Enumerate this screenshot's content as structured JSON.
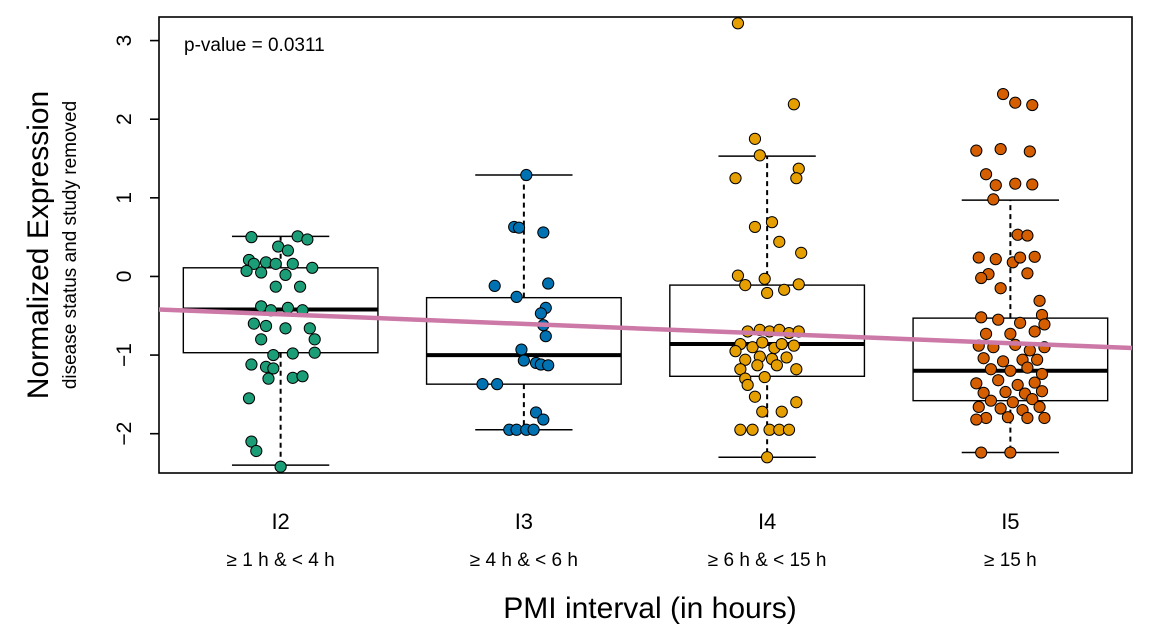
{
  "chart_data": {
    "type": "box",
    "annotation": "p-value = 0.0311",
    "xlabel": "PMI interval (in hours)",
    "ylabel": "Normalized Expression",
    "ylabel_sub": "disease status and study removed",
    "ylim": [
      -2.5,
      3.3
    ],
    "yticks": [
      -2,
      -1,
      0,
      1,
      2,
      3
    ],
    "ytick_labels": [
      "−2",
      "−1",
      "0",
      "1",
      "2",
      "3"
    ],
    "trend_line": {
      "x": [
        0.5,
        4.5
      ],
      "y": [
        -0.42,
        -0.91
      ],
      "color": "#cc79a7"
    },
    "groups": [
      {
        "label": "I2",
        "sublabel": "≥ 1 h & < 4 h",
        "color": "#1b9e77",
        "box": {
          "whisker_low": -2.4,
          "q1": -0.97,
          "median": -0.42,
          "q3": 0.11,
          "whisker_high": 0.51
        },
        "points": [
          {
            "dx": -0.12,
            "y": 0.5
          },
          {
            "dx": 0.07,
            "y": 0.51
          },
          {
            "dx": 0.11,
            "y": 0.47
          },
          {
            "dx": -0.01,
            "y": 0.38
          },
          {
            "dx": 0.03,
            "y": 0.33
          },
          {
            "dx": -0.13,
            "y": 0.21
          },
          {
            "dx": -0.11,
            "y": 0.16
          },
          {
            "dx": -0.06,
            "y": 0.18
          },
          {
            "dx": -0.02,
            "y": 0.16
          },
          {
            "dx": 0.05,
            "y": 0.16
          },
          {
            "dx": 0.13,
            "y": 0.11
          },
          {
            "dx": -0.14,
            "y": 0.07
          },
          {
            "dx": -0.08,
            "y": 0.05
          },
          {
            "dx": 0.02,
            "y": 0.02
          },
          {
            "dx": -0.02,
            "y": -0.13
          },
          {
            "dx": 0.08,
            "y": -0.13
          },
          {
            "dx": -0.08,
            "y": -0.38
          },
          {
            "dx": 0.03,
            "y": -0.4
          },
          {
            "dx": 0.09,
            "y": -0.43
          },
          {
            "dx": -0.04,
            "y": -0.43
          },
          {
            "dx": -0.11,
            "y": -0.6
          },
          {
            "dx": -0.06,
            "y": -0.63
          },
          {
            "dx": 0.02,
            "y": -0.66
          },
          {
            "dx": 0.12,
            "y": -0.66
          },
          {
            "dx": -0.08,
            "y": -0.8
          },
          {
            "dx": 0.14,
            "y": -0.8
          },
          {
            "dx": -0.03,
            "y": -1.0
          },
          {
            "dx": 0.05,
            "y": -0.98
          },
          {
            "dx": 0.14,
            "y": -0.97
          },
          {
            "dx": -0.12,
            "y": -1.12
          },
          {
            "dx": -0.06,
            "y": -1.15
          },
          {
            "dx": -0.03,
            "y": -1.17
          },
          {
            "dx": 0.05,
            "y": -1.29
          },
          {
            "dx": 0.09,
            "y": -1.27
          },
          {
            "dx": -0.05,
            "y": -1.3
          },
          {
            "dx": -0.13,
            "y": -1.55
          },
          {
            "dx": -0.12,
            "y": -2.1
          },
          {
            "dx": -0.1,
            "y": -2.22
          },
          {
            "dx": 0.0,
            "y": -2.42
          }
        ]
      },
      {
        "label": "I3",
        "sublabel": "≥ 4 h & < 6 h",
        "color": "#0072b2",
        "box": {
          "whisker_low": -1.95,
          "q1": -1.37,
          "median": -1.0,
          "q3": -0.27,
          "whisker_high": 1.29
        },
        "points": [
          {
            "dx": 0.01,
            "y": 1.29
          },
          {
            "dx": -0.04,
            "y": 0.63
          },
          {
            "dx": -0.02,
            "y": 0.62
          },
          {
            "dx": 0.08,
            "y": 0.56
          },
          {
            "dx": -0.12,
            "y": -0.12
          },
          {
            "dx": 0.1,
            "y": -0.09
          },
          {
            "dx": -0.03,
            "y": -0.26
          },
          {
            "dx": 0.09,
            "y": -0.4
          },
          {
            "dx": 0.07,
            "y": -0.47
          },
          {
            "dx": 0.08,
            "y": -0.62
          },
          {
            "dx": 0.09,
            "y": -0.76
          },
          {
            "dx": -0.01,
            "y": -0.93
          },
          {
            "dx": 0.0,
            "y": -1.07
          },
          {
            "dx": 0.05,
            "y": -1.1
          },
          {
            "dx": 0.07,
            "y": -1.12
          },
          {
            "dx": 0.1,
            "y": -1.13
          },
          {
            "dx": -0.17,
            "y": -1.37
          },
          {
            "dx": -0.11,
            "y": -1.37
          },
          {
            "dx": 0.05,
            "y": -1.73
          },
          {
            "dx": 0.08,
            "y": -1.82
          },
          {
            "dx": -0.06,
            "y": -1.95
          },
          {
            "dx": -0.03,
            "y": -1.95
          },
          {
            "dx": 0.01,
            "y": -1.95
          },
          {
            "dx": 0.04,
            "y": -1.95
          }
        ]
      },
      {
        "label": "I4",
        "sublabel": "≥ 6 h & < 15 h",
        "color": "#e69f00",
        "box": {
          "whisker_low": -2.3,
          "q1": -1.27,
          "median": -0.86,
          "q3": -0.11,
          "whisker_high": 1.53
        },
        "points": [
          {
            "dx": -0.12,
            "y": 3.22
          },
          {
            "dx": 0.11,
            "y": 2.19
          },
          {
            "dx": -0.05,
            "y": 1.75
          },
          {
            "dx": -0.03,
            "y": 1.54
          },
          {
            "dx": 0.13,
            "y": 1.37
          },
          {
            "dx": -0.13,
            "y": 1.25
          },
          {
            "dx": 0.12,
            "y": 1.25
          },
          {
            "dx": 0.02,
            "y": 0.69
          },
          {
            "dx": -0.05,
            "y": 0.63
          },
          {
            "dx": 0.05,
            "y": 0.44
          },
          {
            "dx": 0.14,
            "y": 0.3
          },
          {
            "dx": -0.12,
            "y": 0.01
          },
          {
            "dx": -0.09,
            "y": -0.11
          },
          {
            "dx": -0.01,
            "y": -0.03
          },
          {
            "dx": 0.13,
            "y": -0.1
          },
          {
            "dx": 0.07,
            "y": -0.17
          },
          {
            "dx": 0.0,
            "y": -0.21
          },
          {
            "dx": -0.08,
            "y": -0.7
          },
          {
            "dx": -0.03,
            "y": -0.68
          },
          {
            "dx": 0.01,
            "y": -0.7
          },
          {
            "dx": 0.05,
            "y": -0.68
          },
          {
            "dx": 0.09,
            "y": -0.72
          },
          {
            "dx": 0.13,
            "y": -0.7
          },
          {
            "dx": -0.11,
            "y": -0.86
          },
          {
            "dx": -0.06,
            "y": -0.9
          },
          {
            "dx": -0.02,
            "y": -0.84
          },
          {
            "dx": 0.03,
            "y": -0.91
          },
          {
            "dx": 0.06,
            "y": -0.86
          },
          {
            "dx": 0.11,
            "y": -0.88
          },
          {
            "dx": -0.13,
            "y": -0.95
          },
          {
            "dx": -0.09,
            "y": -1.06
          },
          {
            "dx": -0.03,
            "y": -1.02
          },
          {
            "dx": 0.02,
            "y": -1.05
          },
          {
            "dx": 0.08,
            "y": -1.03
          },
          {
            "dx": -0.11,
            "y": -1.18
          },
          {
            "dx": -0.04,
            "y": -1.13
          },
          {
            "dx": 0.04,
            "y": -1.13
          },
          {
            "dx": 0.12,
            "y": -1.18
          },
          {
            "dx": -0.09,
            "y": -1.3
          },
          {
            "dx": -0.01,
            "y": -1.28
          },
          {
            "dx": -0.08,
            "y": -1.38
          },
          {
            "dx": -0.05,
            "y": -1.53
          },
          {
            "dx": 0.12,
            "y": -1.6
          },
          {
            "dx": -0.02,
            "y": -1.72
          },
          {
            "dx": 0.06,
            "y": -1.72
          },
          {
            "dx": -0.11,
            "y": -1.95
          },
          {
            "dx": -0.06,
            "y": -1.95
          },
          {
            "dx": 0.01,
            "y": -1.95
          },
          {
            "dx": 0.05,
            "y": -1.95
          },
          {
            "dx": 0.09,
            "y": -1.95
          },
          {
            "dx": 0.0,
            "y": -2.3
          }
        ]
      },
      {
        "label": "I5",
        "sublabel": "≥ 15 h",
        "color": "#d55e00",
        "box": {
          "whisker_low": -2.24,
          "q1": -1.58,
          "median": -1.2,
          "q3": -0.53,
          "whisker_high": 0.97
        },
        "points": [
          {
            "dx": -0.03,
            "y": 2.32
          },
          {
            "dx": 0.02,
            "y": 2.21
          },
          {
            "dx": 0.09,
            "y": 2.18
          },
          {
            "dx": -0.14,
            "y": 1.6
          },
          {
            "dx": -0.04,
            "y": 1.62
          },
          {
            "dx": 0.08,
            "y": 1.59
          },
          {
            "dx": -0.1,
            "y": 1.3
          },
          {
            "dx": -0.06,
            "y": 1.16
          },
          {
            "dx": 0.02,
            "y": 1.18
          },
          {
            "dx": 0.09,
            "y": 1.17
          },
          {
            "dx": -0.07,
            "y": 0.98
          },
          {
            "dx": 0.03,
            "y": 0.53
          },
          {
            "dx": 0.07,
            "y": 0.52
          },
          {
            "dx": -0.13,
            "y": 0.24
          },
          {
            "dx": -0.06,
            "y": 0.22
          },
          {
            "dx": 0.01,
            "y": 0.18
          },
          {
            "dx": 0.04,
            "y": 0.24
          },
          {
            "dx": 0.1,
            "y": 0.25
          },
          {
            "dx": -0.09,
            "y": 0.03
          },
          {
            "dx": -0.12,
            "y": -0.02
          },
          {
            "dx": 0.07,
            "y": 0.04
          },
          {
            "dx": -0.04,
            "y": -0.15
          },
          {
            "dx": 0.12,
            "y": -0.31
          },
          {
            "dx": 0.13,
            "y": -0.49
          },
          {
            "dx": -0.12,
            "y": -0.52
          },
          {
            "dx": -0.05,
            "y": -0.55
          },
          {
            "dx": 0.04,
            "y": -0.59
          },
          {
            "dx": 0.14,
            "y": -0.61
          },
          {
            "dx": -0.1,
            "y": -0.73
          },
          {
            "dx": 0.0,
            "y": -0.73
          },
          {
            "dx": 0.1,
            "y": -0.7
          },
          {
            "dx": -0.13,
            "y": -0.88
          },
          {
            "dx": -0.07,
            "y": -0.9
          },
          {
            "dx": 0.02,
            "y": -0.87
          },
          {
            "dx": 0.08,
            "y": -0.94
          },
          {
            "dx": 0.14,
            "y": -0.9
          },
          {
            "dx": -0.11,
            "y": -1.04
          },
          {
            "dx": -0.03,
            "y": -1.08
          },
          {
            "dx": 0.05,
            "y": -1.06
          },
          {
            "dx": 0.11,
            "y": -1.06
          },
          {
            "dx": -0.08,
            "y": -1.18
          },
          {
            "dx": 0.0,
            "y": -1.2
          },
          {
            "dx": 0.07,
            "y": -1.16
          },
          {
            "dx": 0.13,
            "y": -1.24
          },
          {
            "dx": -0.14,
            "y": -1.36
          },
          {
            "dx": -0.05,
            "y": -1.32
          },
          {
            "dx": 0.03,
            "y": -1.38
          },
          {
            "dx": 0.1,
            "y": -1.35
          },
          {
            "dx": -0.11,
            "y": -1.48
          },
          {
            "dx": -0.02,
            "y": -1.47
          },
          {
            "dx": 0.06,
            "y": -1.49
          },
          {
            "dx": 0.13,
            "y": -1.46
          },
          {
            "dx": -0.08,
            "y": -1.58
          },
          {
            "dx": 0.01,
            "y": -1.6
          },
          {
            "dx": 0.09,
            "y": -1.56
          },
          {
            "dx": -0.13,
            "y": -1.66
          },
          {
            "dx": -0.04,
            "y": -1.68
          },
          {
            "dx": 0.05,
            "y": -1.7
          },
          {
            "dx": 0.12,
            "y": -1.66
          },
          {
            "dx": -0.1,
            "y": -1.8
          },
          {
            "dx": -0.01,
            "y": -1.79
          },
          {
            "dx": 0.07,
            "y": -1.8
          },
          {
            "dx": 0.14,
            "y": -1.8
          },
          {
            "dx": -0.14,
            "y": -1.82
          },
          {
            "dx": -0.12,
            "y": -2.24
          },
          {
            "dx": 0.0,
            "y": -2.24
          }
        ]
      }
    ]
  }
}
